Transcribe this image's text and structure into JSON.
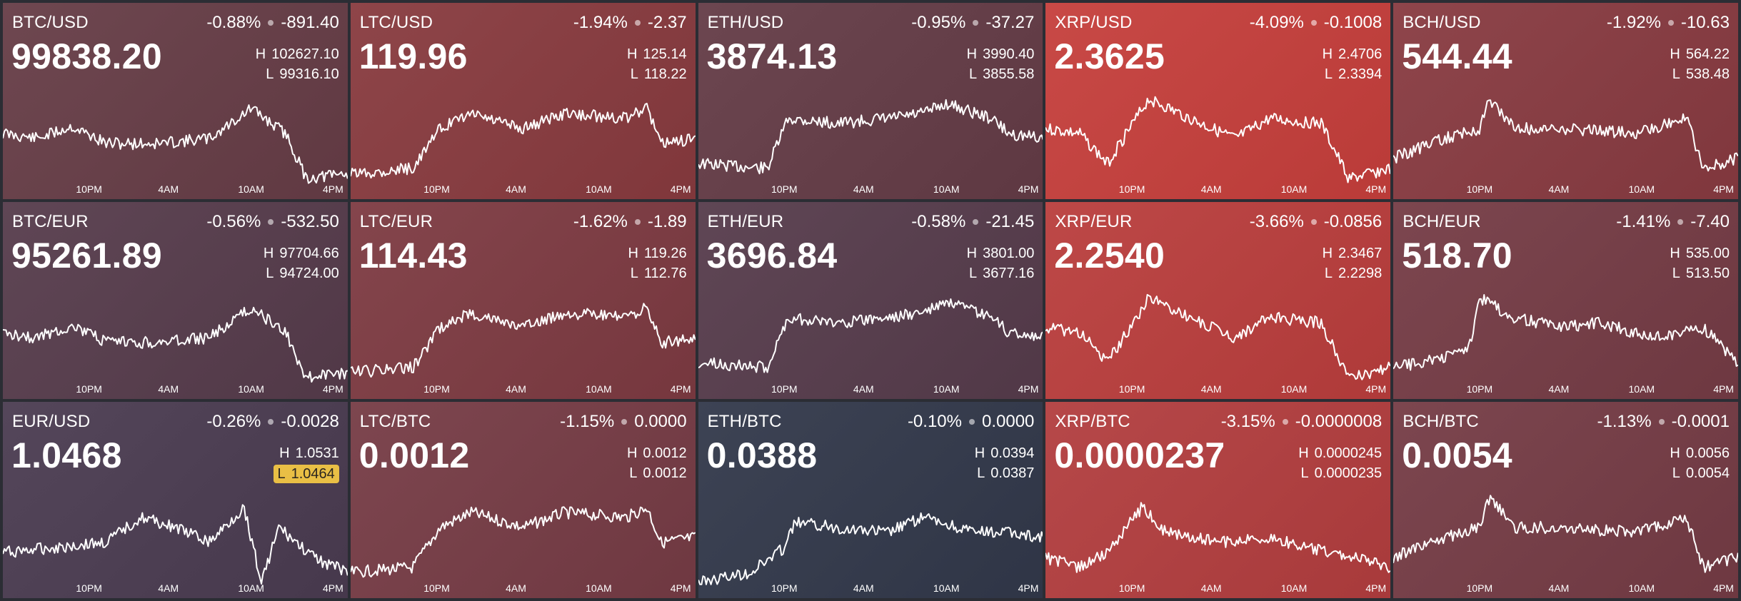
{
  "tiles": [
    {
      "pair": "BTC/USD",
      "pct": "-0.88%",
      "abs": "-891.40",
      "price": "99838.20",
      "high_label": "H",
      "high": "102627.10",
      "low_label": "L",
      "low": "99316.10",
      "color": "#6e4750",
      "low_hilite": false,
      "seed": 11,
      "shape": "a"
    },
    {
      "pair": "LTC/USD",
      "pct": "-1.94%",
      "abs": "-2.37",
      "price": "119.96",
      "high_label": "H",
      "high": "125.14",
      "low_label": "L",
      "low": "118.22",
      "color": "#8e4549",
      "low_hilite": false,
      "seed": 12,
      "shape": "b"
    },
    {
      "pair": "ETH/USD",
      "pct": "-0.95%",
      "abs": "-37.27",
      "price": "3874.13",
      "high_label": "H",
      "high": "3990.40",
      "low_label": "L",
      "low": "3855.58",
      "color": "#6c4650",
      "low_hilite": false,
      "seed": 13,
      "shape": "c"
    },
    {
      "pair": "XRP/USD",
      "pct": "-4.09%",
      "abs": "-0.1008",
      "price": "2.3625",
      "high_label": "H",
      "high": "2.4706",
      "low_label": "L",
      "low": "2.3394",
      "color": "#c84946",
      "low_hilite": false,
      "seed": 14,
      "shape": "d"
    },
    {
      "pair": "BCH/USD",
      "pct": "-1.92%",
      "abs": "-10.63",
      "price": "544.44",
      "high_label": "H",
      "high": "564.22",
      "low_label": "L",
      "low": "538.48",
      "color": "#8e454b",
      "low_hilite": false,
      "seed": 15,
      "shape": "e"
    },
    {
      "pair": "BTC/EUR",
      "pct": "-0.56%",
      "abs": "-532.50",
      "price": "95261.89",
      "high_label": "H",
      "high": "97704.66",
      "low_label": "L",
      "low": "94724.00",
      "color": "#5f4655",
      "low_hilite": false,
      "seed": 21,
      "shape": "a"
    },
    {
      "pair": "LTC/EUR",
      "pct": "-1.62%",
      "abs": "-1.89",
      "price": "114.43",
      "high_label": "H",
      "high": "119.26",
      "low_label": "L",
      "low": "112.76",
      "color": "#84454c",
      "low_hilite": false,
      "seed": 22,
      "shape": "b"
    },
    {
      "pair": "ETH/EUR",
      "pct": "-0.58%",
      "abs": "-21.45",
      "price": "3696.84",
      "high_label": "H",
      "high": "3801.00",
      "low_label": "L",
      "low": "3677.16",
      "color": "#5f4655",
      "low_hilite": false,
      "seed": 23,
      "shape": "c"
    },
    {
      "pair": "XRP/EUR",
      "pct": "-3.66%",
      "abs": "-0.0856",
      "price": "2.2540",
      "high_label": "H",
      "high": "2.3467",
      "low_label": "L",
      "low": "2.2298",
      "color": "#bd4847",
      "low_hilite": false,
      "seed": 24,
      "shape": "d"
    },
    {
      "pair": "BCH/EUR",
      "pct": "-1.41%",
      "abs": "-7.40",
      "price": "518.70",
      "high_label": "H",
      "high": "535.00",
      "low_label": "L",
      "low": "513.50",
      "color": "#7c464f",
      "low_hilite": false,
      "seed": 25,
      "shape": "f"
    },
    {
      "pair": "EUR/USD",
      "pct": "-0.26%",
      "abs": "-0.0028",
      "price": "1.0468",
      "high_label": "H",
      "high": "1.0531",
      "low_label": "L",
      "low": "1.0464",
      "color": "#54465a",
      "low_hilite": true,
      "seed": 31,
      "shape": "g"
    },
    {
      "pair": "LTC/BTC",
      "pct": "-1.15%",
      "abs": "0.0000",
      "price": "0.0012",
      "high_label": "H",
      "high": "0.0012",
      "low_label": "L",
      "low": "0.0012",
      "color": "#7d464f",
      "low_hilite": false,
      "seed": 32,
      "shape": "b"
    },
    {
      "pair": "ETH/BTC",
      "pct": "-0.10%",
      "abs": "0.0000",
      "price": "0.0388",
      "high_label": "H",
      "high": "0.0394",
      "low_label": "L",
      "low": "0.0387",
      "color": "#3d4354",
      "low_hilite": false,
      "seed": 33,
      "shape": "h"
    },
    {
      "pair": "XRP/BTC",
      "pct": "-3.15%",
      "abs": "-0.0000008",
      "price": "0.0000237",
      "high_label": "H",
      "high": "0.0000245",
      "low_label": "L",
      "low": "0.0000235",
      "color": "#b64849",
      "low_hilite": false,
      "seed": 34,
      "shape": "i"
    },
    {
      "pair": "BCH/BTC",
      "pct": "-1.13%",
      "abs": "-0.0001",
      "price": "0.0054",
      "high_label": "H",
      "high": "0.0056",
      "low_label": "L",
      "low": "0.0054",
      "color": "#7c464f",
      "low_hilite": false,
      "seed": 35,
      "shape": "e"
    }
  ],
  "axis_labels": [
    "10PM",
    "4AM",
    "10AM",
    "4PM"
  ]
}
